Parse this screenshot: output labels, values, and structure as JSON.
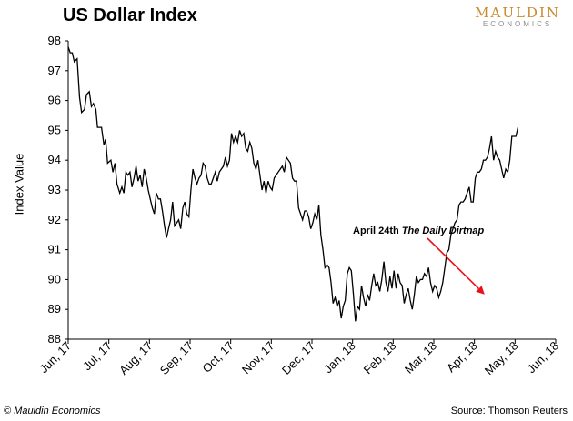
{
  "header": {
    "title": "US Dollar Index",
    "logo_line1": "MAULDIN",
    "logo_line2": "ECONOMICS"
  },
  "footer": {
    "copyright": "© Mauldin Economics",
    "source": "Source: Thomson Reuters"
  },
  "colors": {
    "line": "#000000",
    "arrow": "#e8101a",
    "logo": "#c98a2e"
  },
  "chart_data": {
    "type": "line",
    "title": "US Dollar Index",
    "xlabel": "",
    "ylabel": "Index Value",
    "ylim": [
      88,
      98
    ],
    "yticks": [
      88,
      89,
      90,
      91,
      92,
      93,
      94,
      95,
      96,
      97,
      98
    ],
    "x_tick_labels": [
      "Jun, 17",
      "Jul, 17",
      "Aug, 17",
      "Sep, 17",
      "Oct, 17",
      "Nov, 17",
      "Dec, 17",
      "Jan, 18",
      "Feb, 18",
      "Mar, 18",
      "Apr, 18",
      "May, 18",
      "Jun, 18"
    ],
    "grid": false,
    "annotation": {
      "text_plain": "April 24th ",
      "text_italic": "The Daily Dirtnap",
      "x": 10.25,
      "y": 89.5
    },
    "series": [
      {
        "values": [
          [
            0.0,
            97.8
          ],
          [
            0.05,
            97.6
          ],
          [
            0.1,
            97.6
          ],
          [
            0.15,
            97.3
          ],
          [
            0.22,
            97.4
          ],
          [
            0.28,
            96.1
          ],
          [
            0.33,
            95.6
          ],
          [
            0.4,
            95.7
          ],
          [
            0.45,
            96.2
          ],
          [
            0.52,
            96.3
          ],
          [
            0.57,
            95.8
          ],
          [
            0.62,
            95.9
          ],
          [
            0.68,
            95.7
          ],
          [
            0.72,
            95.1
          ],
          [
            0.82,
            95.1
          ],
          [
            0.88,
            94.5
          ],
          [
            0.92,
            94.7
          ],
          [
            0.97,
            93.9
          ],
          [
            1.05,
            94.0
          ],
          [
            1.1,
            93.6
          ],
          [
            1.15,
            93.9
          ],
          [
            1.2,
            93.2
          ],
          [
            1.27,
            92.9
          ],
          [
            1.32,
            93.1
          ],
          [
            1.37,
            92.9
          ],
          [
            1.42,
            93.6
          ],
          [
            1.47,
            93.5
          ],
          [
            1.52,
            93.6
          ],
          [
            1.57,
            93.1
          ],
          [
            1.62,
            93.4
          ],
          [
            1.67,
            93.8
          ],
          [
            1.72,
            93.3
          ],
          [
            1.77,
            93.5
          ],
          [
            1.82,
            93.1
          ],
          [
            1.87,
            93.7
          ],
          [
            1.92,
            93.4
          ],
          [
            1.97,
            93.0
          ],
          [
            2.02,
            92.7
          ],
          [
            2.07,
            92.4
          ],
          [
            2.12,
            92.2
          ],
          [
            2.17,
            92.9
          ],
          [
            2.22,
            92.7
          ],
          [
            2.27,
            92.7
          ],
          [
            2.32,
            92.3
          ],
          [
            2.37,
            91.8
          ],
          [
            2.42,
            91.4
          ],
          [
            2.47,
            91.7
          ],
          [
            2.52,
            92.0
          ],
          [
            2.57,
            92.6
          ],
          [
            2.62,
            91.8
          ],
          [
            2.67,
            91.9
          ],
          [
            2.72,
            92.0
          ],
          [
            2.77,
            91.7
          ],
          [
            2.82,
            92.4
          ],
          [
            2.87,
            92.6
          ],
          [
            2.92,
            92.2
          ],
          [
            2.97,
            92.1
          ],
          [
            3.02,
            93.0
          ],
          [
            3.07,
            93.7
          ],
          [
            3.12,
            93.4
          ],
          [
            3.17,
            93.2
          ],
          [
            3.22,
            93.4
          ],
          [
            3.27,
            93.5
          ],
          [
            3.32,
            93.9
          ],
          [
            3.37,
            93.8
          ],
          [
            3.42,
            93.4
          ],
          [
            3.47,
            93.2
          ],
          [
            3.52,
            93.2
          ],
          [
            3.57,
            93.4
          ],
          [
            3.62,
            93.6
          ],
          [
            3.67,
            93.3
          ],
          [
            3.72,
            93.6
          ],
          [
            3.77,
            93.7
          ],
          [
            3.82,
            93.8
          ],
          [
            3.87,
            94.1
          ],
          [
            3.92,
            93.8
          ],
          [
            3.97,
            94.0
          ],
          [
            4.02,
            94.9
          ],
          [
            4.07,
            94.6
          ],
          [
            4.12,
            94.8
          ],
          [
            4.17,
            94.6
          ],
          [
            4.22,
            95.0
          ],
          [
            4.27,
            94.8
          ],
          [
            4.32,
            94.9
          ],
          [
            4.37,
            94.4
          ],
          [
            4.42,
            94.3
          ],
          [
            4.47,
            94.6
          ],
          [
            4.52,
            94.4
          ],
          [
            4.57,
            93.9
          ],
          [
            4.62,
            93.7
          ],
          [
            4.67,
            94.0
          ],
          [
            4.72,
            93.5
          ],
          [
            4.77,
            93.0
          ],
          [
            4.82,
            93.3
          ],
          [
            4.87,
            92.9
          ],
          [
            4.92,
            93.3
          ],
          [
            4.97,
            93.1
          ],
          [
            5.02,
            93.0
          ],
          [
            5.07,
            93.4
          ],
          [
            5.12,
            93.5
          ],
          [
            5.17,
            93.6
          ],
          [
            5.22,
            93.7
          ],
          [
            5.27,
            93.8
          ],
          [
            5.32,
            93.6
          ],
          [
            5.37,
            94.1
          ],
          [
            5.42,
            94.0
          ],
          [
            5.47,
            93.9
          ],
          [
            5.52,
            93.4
          ],
          [
            5.57,
            93.3
          ],
          [
            5.62,
            93.3
          ],
          [
            5.67,
            92.4
          ],
          [
            5.72,
            92.2
          ],
          [
            5.77,
            92.0
          ],
          [
            5.82,
            92.3
          ],
          [
            5.87,
            92.3
          ],
          [
            5.92,
            92.1
          ],
          [
            5.97,
            91.7
          ],
          [
            6.02,
            91.9
          ],
          [
            6.07,
            92.2
          ],
          [
            6.12,
            92.0
          ],
          [
            6.17,
            92.5
          ],
          [
            6.22,
            91.5
          ],
          [
            6.27,
            91.0
          ],
          [
            6.32,
            90.4
          ],
          [
            6.37,
            90.5
          ],
          [
            6.42,
            90.4
          ],
          [
            6.47,
            89.9
          ],
          [
            6.52,
            89.2
          ],
          [
            6.57,
            89.4
          ],
          [
            6.62,
            89.1
          ],
          [
            6.67,
            89.3
          ],
          [
            6.72,
            88.7
          ],
          [
            6.77,
            89.1
          ],
          [
            6.82,
            89.3
          ],
          [
            6.87,
            90.2
          ],
          [
            6.92,
            90.4
          ],
          [
            6.97,
            90.3
          ],
          [
            7.02,
            89.5
          ],
          [
            7.07,
            88.6
          ],
          [
            7.12,
            89.1
          ],
          [
            7.17,
            89.0
          ],
          [
            7.22,
            89.8
          ],
          [
            7.27,
            89.4
          ],
          [
            7.32,
            89.1
          ],
          [
            7.37,
            89.5
          ],
          [
            7.42,
            89.3
          ],
          [
            7.47,
            89.8
          ],
          [
            7.52,
            90.2
          ],
          [
            7.57,
            89.8
          ],
          [
            7.62,
            89.9
          ],
          [
            7.67,
            89.6
          ],
          [
            7.72,
            90.0
          ],
          [
            7.77,
            90.6
          ],
          [
            7.82,
            89.9
          ],
          [
            7.87,
            89.6
          ],
          [
            7.92,
            90.1
          ],
          [
            7.97,
            89.7
          ],
          [
            8.02,
            90.3
          ],
          [
            8.07,
            89.7
          ],
          [
            8.12,
            90.2
          ],
          [
            8.17,
            89.9
          ],
          [
            8.22,
            89.8
          ],
          [
            8.27,
            89.2
          ],
          [
            8.32,
            89.5
          ],
          [
            8.37,
            89.7
          ],
          [
            8.42,
            89.3
          ],
          [
            8.47,
            89.0
          ],
          [
            8.52,
            89.5
          ],
          [
            8.57,
            90.1
          ],
          [
            8.62,
            89.9
          ],
          [
            8.67,
            90.0
          ],
          [
            8.72,
            90.0
          ],
          [
            8.77,
            90.2
          ],
          [
            8.82,
            90.1
          ],
          [
            8.87,
            90.4
          ],
          [
            8.92,
            89.9
          ],
          [
            8.97,
            89.6
          ],
          [
            9.02,
            89.8
          ],
          [
            9.07,
            89.7
          ],
          [
            9.12,
            89.4
          ],
          [
            9.17,
            89.6
          ],
          [
            9.22,
            89.9
          ],
          [
            9.27,
            90.4
          ],
          [
            9.32,
            90.9
          ],
          [
            9.37,
            91.0
          ],
          [
            9.42,
            91.5
          ],
          [
            9.47,
            91.7
          ],
          [
            9.52,
            91.9
          ],
          [
            9.57,
            92.0
          ],
          [
            9.62,
            92.5
          ],
          [
            9.67,
            92.6
          ],
          [
            9.72,
            92.6
          ],
          [
            9.77,
            92.7
          ],
          [
            9.82,
            92.9
          ],
          [
            9.87,
            93.1
          ],
          [
            9.92,
            92.6
          ],
          [
            9.97,
            92.6
          ],
          [
            10.02,
            93.4
          ],
          [
            10.07,
            93.6
          ],
          [
            10.12,
            93.6
          ],
          [
            10.17,
            93.7
          ],
          [
            10.22,
            94.0
          ],
          [
            10.27,
            94.0
          ],
          [
            10.32,
            94.1
          ],
          [
            10.37,
            94.4
          ],
          [
            10.42,
            94.8
          ],
          [
            10.47,
            94.0
          ],
          [
            10.52,
            94.3
          ],
          [
            10.57,
            94.1
          ],
          [
            10.62,
            94.0
          ],
          [
            10.67,
            93.7
          ],
          [
            10.72,
            93.4
          ],
          [
            10.77,
            93.7
          ],
          [
            10.82,
            93.6
          ],
          [
            10.87,
            94.0
          ],
          [
            10.92,
            94.8
          ],
          [
            10.97,
            94.8
          ],
          [
            11.02,
            94.8
          ],
          [
            11.07,
            95.1
          ]
        ]
      }
    ]
  }
}
